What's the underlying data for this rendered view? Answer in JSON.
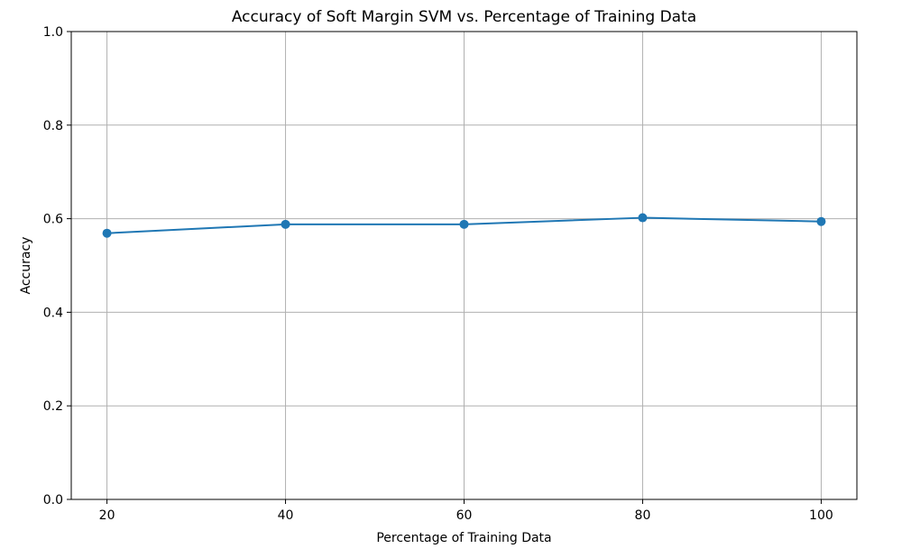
{
  "chart_data": {
    "type": "line",
    "title": "Accuracy of Soft Margin SVM vs. Percentage of Training Data",
    "xlabel": "Percentage of Training Data",
    "ylabel": "Accuracy",
    "x": [
      20,
      40,
      60,
      80,
      100
    ],
    "series": [
      {
        "values": [
          0.569,
          0.588,
          0.588,
          0.602,
          0.594
        ],
        "color": "#1f77b4",
        "marker": "circle"
      }
    ],
    "xlim": [
      16,
      104
    ],
    "ylim": [
      0.0,
      1.0
    ],
    "x_ticks": [
      "20",
      "40",
      "60",
      "80",
      "100"
    ],
    "y_ticks": [
      "0.0",
      "0.2",
      "0.4",
      "0.6",
      "0.8",
      "1.0"
    ],
    "grid": true,
    "legend": "none"
  }
}
